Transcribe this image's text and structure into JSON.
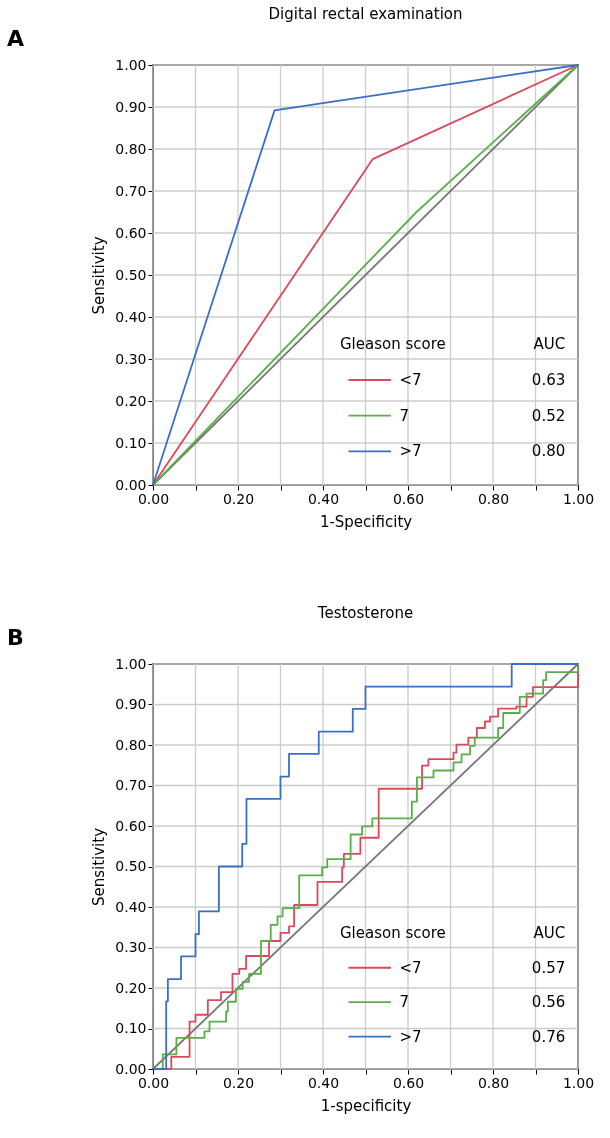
{
  "chart_data": [
    {
      "type": "line",
      "title": "Digital rectal examination",
      "xlabel": "1-Specificity",
      "ylabel": "Sensitivity",
      "legend_title": "Gleason score",
      "annotations": [
        "A",
        "AUC",
        "0.63",
        "0.52",
        "0.80"
      ],
      "series": [
        {
          "type": "line",
          "color": "#777777",
          "x": [
            0,
            1
          ],
          "values": [
            0,
            1
          ]
        },
        {
          "name": "<7",
          "color": "#d94a5c",
          "x": [
            0,
            0.517,
            1
          ],
          "values": [
            0,
            0.776,
            1
          ]
        },
        {
          "name": "7",
          "color": "#5aae4a",
          "x": [
            0,
            0.62,
            1
          ],
          "values": [
            0,
            0.65,
            1
          ]
        },
        {
          "name": ">7",
          "color": "#3b6fc6",
          "x": [
            0,
            0.286,
            1
          ],
          "values": [
            0,
            0.892,
            1
          ]
        }
      ],
      "xlim": [
        0,
        1
      ],
      "ylim": [
        0,
        1
      ],
      "xticks": [
        {
          "value": 0,
          "label": "0.00"
        },
        {
          "value": 0.1,
          "label": null
        },
        {
          "value": 0.2,
          "label": "0.20"
        },
        {
          "value": 0.3,
          "label": null
        },
        {
          "value": 0.4,
          "label": "0.40"
        },
        {
          "value": 0.5,
          "label": null
        },
        {
          "value": 0.6,
          "label": "0.60"
        },
        {
          "value": 0.7,
          "label": null
        },
        {
          "value": 0.8,
          "label": "0.80"
        },
        {
          "value": 0.9,
          "label": null
        },
        {
          "value": 1,
          "label": "1.00"
        }
      ],
      "yticks": [
        {
          "value": 0,
          "label": "0.00"
        },
        {
          "value": 0.1,
          "label": "0.10"
        },
        {
          "value": 0.2,
          "label": "0.20"
        },
        {
          "value": 0.3,
          "label": "0.30"
        },
        {
          "value": 0.4,
          "label": "0.40"
        },
        {
          "value": 0.5,
          "label": "0.50"
        },
        {
          "value": 0.6,
          "label": "0.60"
        },
        {
          "value": 0.7,
          "label": "0.70"
        },
        {
          "value": 0.8,
          "label": "0.80"
        },
        {
          "value": 0.9,
          "label": "0.90"
        },
        {
          "value": 1,
          "label": "1.00"
        }
      ],
      "grid": true,
      "legend": "bottom right"
    },
    {
      "type": "step",
      "title": "Testosterone",
      "xlabel": "1-specificity",
      "ylabel": "Sensitivity",
      "legend_title": "Gleason score",
      "annotations": [
        "B",
        "AUC",
        "0.57",
        "0.56",
        "0.76"
      ],
      "series": [
        {
          "type": "line",
          "color": "#777777",
          "x": [
            0,
            1
          ],
          "values": [
            0,
            1
          ]
        },
        {
          "name": "<7",
          "color": "#d94a5c",
          "x": [
            0,
            0.043,
            0.086,
            0.1,
            0.129,
            0.16,
            0.187,
            0.203,
            0.219,
            0.273,
            0.3,
            0.32,
            0.332,
            0.387,
            0.445,
            0.449,
            0.488,
            0.531,
            0.633,
            0.648,
            0.707,
            0.714,
            0.742,
            0.762,
            0.781,
            0.793,
            0.812,
            0.855,
            0.879,
            0.894,
            1
          ],
          "values": [
            0,
            0.03,
            0.117,
            0.134,
            0.17,
            0.19,
            0.235,
            0.247,
            0.279,
            0.316,
            0.336,
            0.352,
            0.405,
            0.462,
            0.498,
            0.531,
            0.571,
            0.692,
            0.749,
            0.765,
            0.781,
            0.801,
            0.818,
            0.842,
            0.858,
            0.87,
            0.89,
            0.895,
            0.919,
            0.943,
            1
          ]
        },
        {
          "name": "7",
          "color": "#5aae4a",
          "x": [
            0,
            0.023,
            0.055,
            0.121,
            0.133,
            0.172,
            0.176,
            0.195,
            0.211,
            0.226,
            0.254,
            0.277,
            0.293,
            0.305,
            0.344,
            0.398,
            0.41,
            0.465,
            0.492,
            0.516,
            0.609,
            0.621,
            0.66,
            0.707,
            0.726,
            0.746,
            0.757,
            0.812,
            0.824,
            0.863,
            0.879,
            0.918,
            0.925,
            1
          ],
          "values": [
            0,
            0.036,
            0.077,
            0.093,
            0.117,
            0.142,
            0.166,
            0.198,
            0.215,
            0.235,
            0.316,
            0.356,
            0.377,
            0.397,
            0.478,
            0.498,
            0.518,
            0.579,
            0.599,
            0.619,
            0.66,
            0.72,
            0.737,
            0.757,
            0.777,
            0.798,
            0.818,
            0.842,
            0.879,
            0.919,
            0.927,
            0.96,
            0.98,
            1
          ]
        },
        {
          "name": ">7",
          "color": "#3b6fc6",
          "x": [
            0,
            0.031,
            0.035,
            0.066,
            0.1,
            0.108,
            0.155,
            0.21,
            0.22,
            0.3,
            0.32,
            0.39,
            0.47,
            0.5,
            0.844,
            1
          ],
          "values": [
            0,
            0.167,
            0.222,
            0.278,
            0.333,
            0.389,
            0.5,
            0.556,
            0.667,
            0.722,
            0.778,
            0.833,
            0.889,
            0.944,
            1,
            1
          ]
        }
      ],
      "xlim": [
        0,
        1
      ],
      "ylim": [
        0,
        1
      ],
      "xticks": [
        {
          "value": 0,
          "label": "0.00"
        },
        {
          "value": 0.1,
          "label": null
        },
        {
          "value": 0.2,
          "label": "0.20"
        },
        {
          "value": 0.3,
          "label": null
        },
        {
          "value": 0.4,
          "label": "0.40"
        },
        {
          "value": 0.5,
          "label": null
        },
        {
          "value": 0.6,
          "label": "0.60"
        },
        {
          "value": 0.7,
          "label": null
        },
        {
          "value": 0.8,
          "label": "0.80"
        },
        {
          "value": 0.9,
          "label": null
        },
        {
          "value": 1,
          "label": "1.00"
        }
      ],
      "yticks": [
        {
          "value": 0,
          "label": "0.00"
        },
        {
          "value": 0.1,
          "label": "0.10"
        },
        {
          "value": 0.2,
          "label": "0.20"
        },
        {
          "value": 0.3,
          "label": "0.30"
        },
        {
          "value": 0.4,
          "label": "0.40"
        },
        {
          "value": 0.5,
          "label": "0.50"
        },
        {
          "value": 0.6,
          "label": "0.60"
        },
        {
          "value": 0.7,
          "label": "0.70"
        },
        {
          "value": 0.8,
          "label": "0.80"
        },
        {
          "value": 0.9,
          "label": "0.90"
        },
        {
          "value": 1,
          "label": "1.00"
        }
      ],
      "grid": true,
      "legend": "bottom right"
    }
  ]
}
